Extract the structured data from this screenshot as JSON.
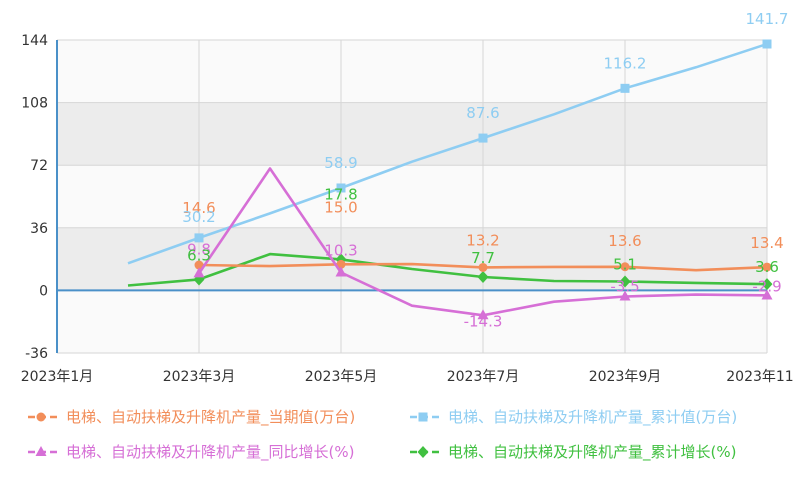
{
  "chart_data": {
    "type": "line",
    "x_ticks": [
      "2023年1月",
      "2023年3月",
      "2023年5月",
      "2023年7月",
      "2023年9月",
      "2023年11月"
    ],
    "x": [
      "2023年1月",
      "2023年2月",
      "2023年3月",
      "2023年4月",
      "2023年5月",
      "2023年6月",
      "2023年7月",
      "2023年8月",
      "2023年9月",
      "2023年10月",
      "2023年11月"
    ],
    "ylim": [
      -36,
      144
    ],
    "yticks": [
      -36,
      0,
      36,
      72,
      108,
      144
    ],
    "grid": true,
    "legend_position": "bottom",
    "series": [
      {
        "name": "电梯、自动扶梯及升降机产量_当期值(万台)",
        "color": "#f28e5a",
        "marker": "circle",
        "values": [
          null,
          null,
          14.6,
          14.0,
          15.0,
          15.1,
          13.2,
          13.5,
          13.6,
          11.6,
          13.4
        ]
      },
      {
        "name": "电梯、自动扶梯及升降机产量_累计值(万台)",
        "color": "#8ecdf2",
        "marker": "square",
        "values": [
          null,
          15.6,
          30.2,
          44.3,
          58.9,
          74.0,
          87.6,
          101.3,
          116.2,
          128.3,
          141.7
        ]
      },
      {
        "name": "电梯、自动扶梯及升降机产量_同比增长(%)",
        "color": "#d66fd6",
        "marker": "triangle",
        "values": [
          null,
          null,
          9.8,
          70.1,
          10.3,
          -8.8,
          -14.3,
          -6.5,
          -3.5,
          -2.4,
          -2.9
        ]
      },
      {
        "name": "电梯、自动扶梯及升降机产量_累计增长(%)",
        "color": "#40c040",
        "marker": "diamond",
        "values": [
          null,
          2.8,
          6.3,
          20.9,
          17.8,
          12.3,
          7.7,
          5.4,
          5.1,
          4.3,
          3.6
        ]
      }
    ],
    "data_labels": [
      {
        "series": 0,
        "index": 2,
        "text": "14.6"
      },
      {
        "series": 0,
        "index": 4,
        "text": "15.0"
      },
      {
        "series": 0,
        "index": 6,
        "text": "13.2"
      },
      {
        "series": 0,
        "index": 8,
        "text": "13.6"
      },
      {
        "series": 0,
        "index": 10,
        "text": "13.4"
      },
      {
        "series": 1,
        "index": 2,
        "text": "30.2"
      },
      {
        "series": 1,
        "index": 4,
        "text": "58.9"
      },
      {
        "series": 1,
        "index": 6,
        "text": "87.6"
      },
      {
        "series": 1,
        "index": 8,
        "text": "116.2"
      },
      {
        "series": 1,
        "index": 10,
        "text": "141.7"
      },
      {
        "series": 2,
        "index": 2,
        "text": "9.8"
      },
      {
        "series": 2,
        "index": 4,
        "text": "10.3"
      },
      {
        "series": 2,
        "index": 6,
        "text": "-14.3"
      },
      {
        "series": 2,
        "index": 8,
        "text": "-3.5"
      },
      {
        "series": 2,
        "index": 10,
        "text": "-2.9"
      },
      {
        "series": 3,
        "index": 2,
        "text": "6.3"
      },
      {
        "series": 3,
        "index": 4,
        "text": "17.8"
      },
      {
        "series": 3,
        "index": 6,
        "text": "7.7"
      },
      {
        "series": 3,
        "index": 8,
        "text": "5.1"
      },
      {
        "series": 3,
        "index": 10,
        "text": "3.6"
      }
    ]
  }
}
